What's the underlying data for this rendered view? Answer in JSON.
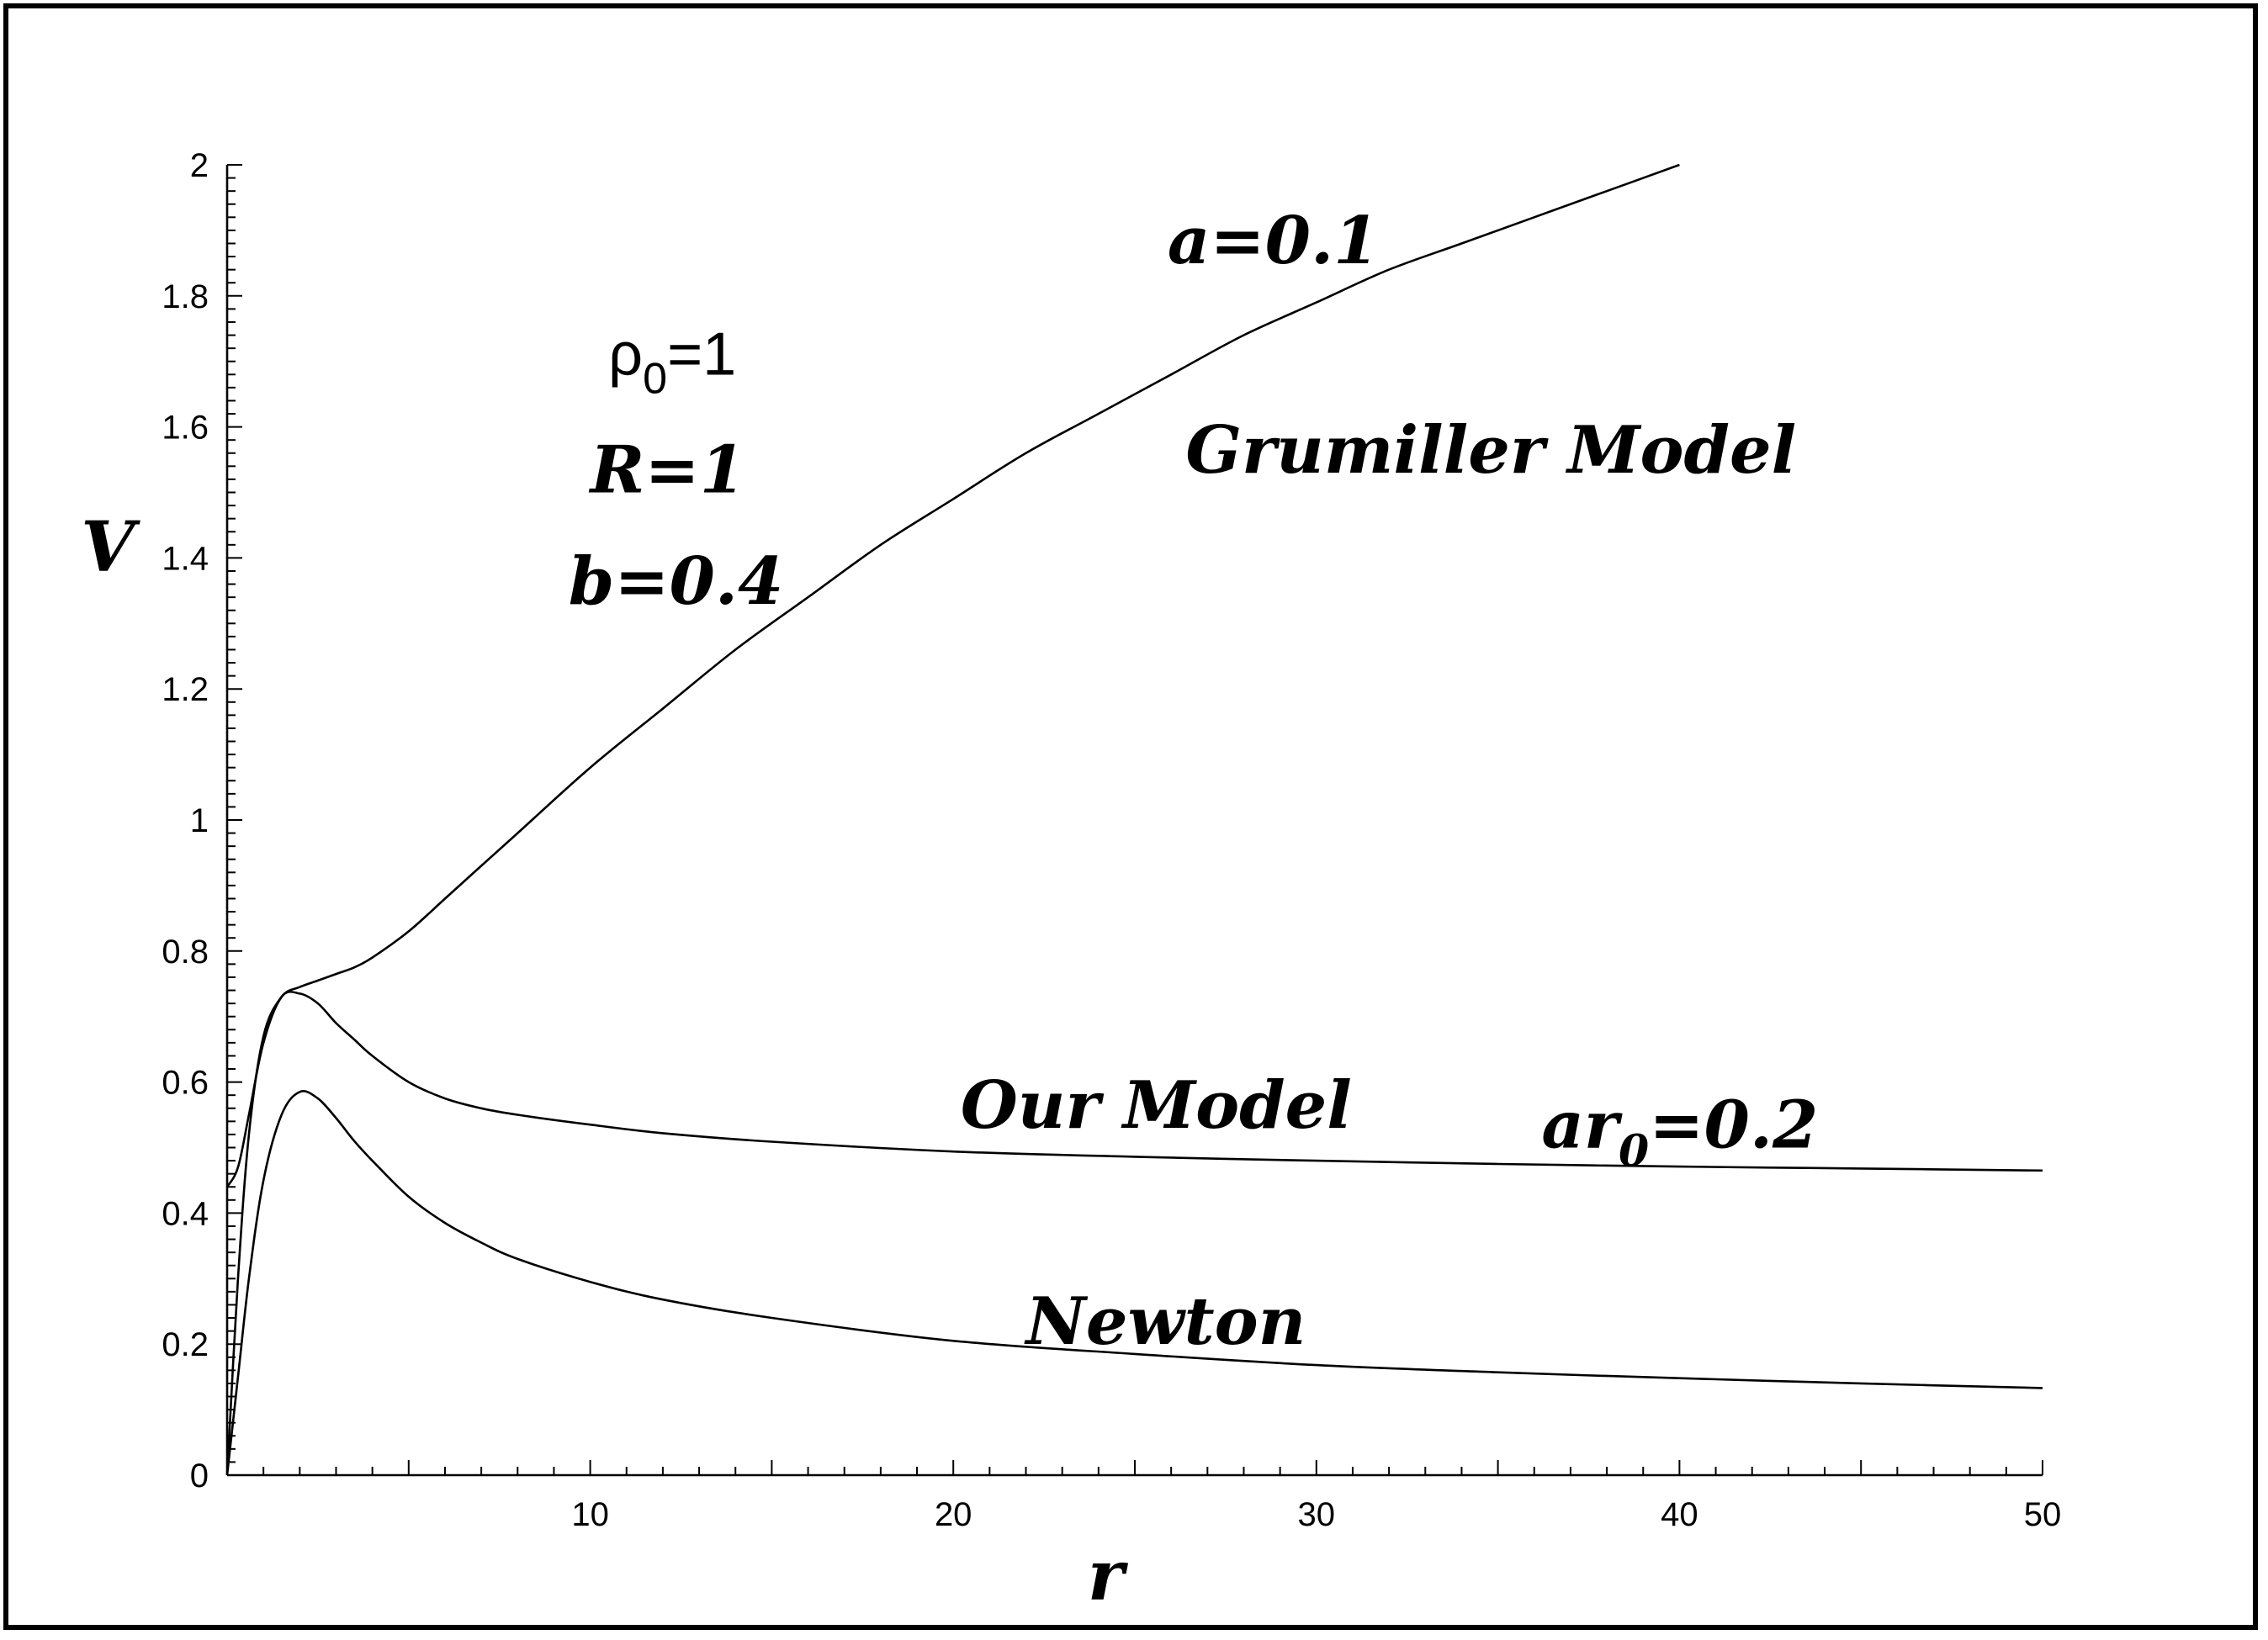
{
  "chart_data": {
    "type": "line",
    "xlabel": "r",
    "ylabel": "V",
    "xlim": [
      0,
      50
    ],
    "ylim": [
      0,
      2
    ],
    "x_ticks": [
      10,
      20,
      30,
      40,
      50
    ],
    "x_tick_labels": [
      "10",
      "20",
      "30",
      "40",
      "50"
    ],
    "y_ticks": [
      0,
      0.2,
      0.4,
      0.6,
      0.8,
      1,
      1.2,
      1.4,
      1.6,
      1.8,
      2
    ],
    "y_tick_labels": [
      "0",
      "0.2",
      "0.4",
      "0.6",
      "0.8",
      "1",
      "1.2",
      "1.4",
      "1.6",
      "1.8",
      "2"
    ],
    "grid": false,
    "series": [
      {
        "x": [
          0,
          0.3,
          0.6,
          1.0,
          1.5,
          2.0,
          2.5,
          3.0,
          3.5,
          4.0,
          5.0,
          6.0,
          7.0,
          8.0,
          10.0,
          12.0,
          14.0,
          16.0,
          18.0,
          20.0,
          22.0,
          24.0,
          26.0,
          28.0,
          30.0,
          32.0,
          34.0,
          36.0,
          38.0,
          40.0
        ],
        "values": [
          0,
          0.3,
          0.52,
          0.67,
          0.73,
          0.745,
          0.755,
          0.765,
          0.775,
          0.79,
          0.83,
          0.88,
          0.93,
          0.98,
          1.08,
          1.17,
          1.26,
          1.34,
          1.42,
          1.49,
          1.56,
          1.62,
          1.68,
          1.74,
          1.79,
          1.84,
          1.88,
          1.92,
          1.96,
          2.0
        ]
      },
      {
        "x": [
          0,
          0.3,
          0.6,
          1.0,
          1.5,
          2.0,
          2.5,
          3.0,
          3.5,
          4.0,
          5.0,
          6.0,
          7.0,
          8.0,
          10.0,
          12.0,
          15.0,
          20.0,
          25.0,
          30.0,
          35.0,
          40.0,
          45.0,
          50.0
        ],
        "values": [
          0.44,
          0.47,
          0.55,
          0.66,
          0.73,
          0.735,
          0.72,
          0.69,
          0.665,
          0.64,
          0.6,
          0.575,
          0.56,
          0.55,
          0.535,
          0.522,
          0.509,
          0.494,
          0.486,
          0.48,
          0.475,
          0.471,
          0.468,
          0.465
        ]
      },
      {
        "x": [
          0,
          0.3,
          0.6,
          1.0,
          1.5,
          2.0,
          2.5,
          3.0,
          3.5,
          4.0,
          5.0,
          6.0,
          7.0,
          8.0,
          10.0,
          12.0,
          15.0,
          20.0,
          25.0,
          30.0,
          35.0,
          40.0,
          45.0,
          50.0
        ],
        "values": [
          0,
          0.15,
          0.3,
          0.45,
          0.55,
          0.585,
          0.575,
          0.545,
          0.51,
          0.48,
          0.425,
          0.385,
          0.355,
          0.33,
          0.295,
          0.268,
          0.24,
          0.205,
          0.185,
          0.168,
          0.157,
          0.148,
          0.14,
          0.133
        ]
      }
    ],
    "annotations": [
      {
        "id": "a",
        "text": "a=0.1",
        "x": 25.9,
        "y": 1.85,
        "style": "italic"
      },
      {
        "id": "grumiller",
        "text": "Grumiller Model",
        "x": 26.4,
        "y": 1.53,
        "style": "italic"
      },
      {
        "id": "rho",
        "text": "ρ",
        "sub": "0",
        "after": "=1",
        "x": 10.5,
        "y": 1.68,
        "style": "plain"
      },
      {
        "id": "R",
        "text": "R=1",
        "x": 10.0,
        "y": 1.5,
        "style": "italic"
      },
      {
        "id": "b",
        "text": "b=0.4",
        "x": 9.4,
        "y": 1.33,
        "style": "italic"
      },
      {
        "id": "ourmodel",
        "text": "Our Model",
        "x": 20.2,
        "y": 0.53,
        "style": "italic"
      },
      {
        "id": "ar0",
        "text": "ar",
        "sub": "0",
        "after": "=0.2",
        "x": 36.2,
        "y": 0.5,
        "style": "italic"
      },
      {
        "id": "newton",
        "text": "Newton",
        "x": 22.0,
        "y": 0.2,
        "style": "italic"
      }
    ]
  }
}
